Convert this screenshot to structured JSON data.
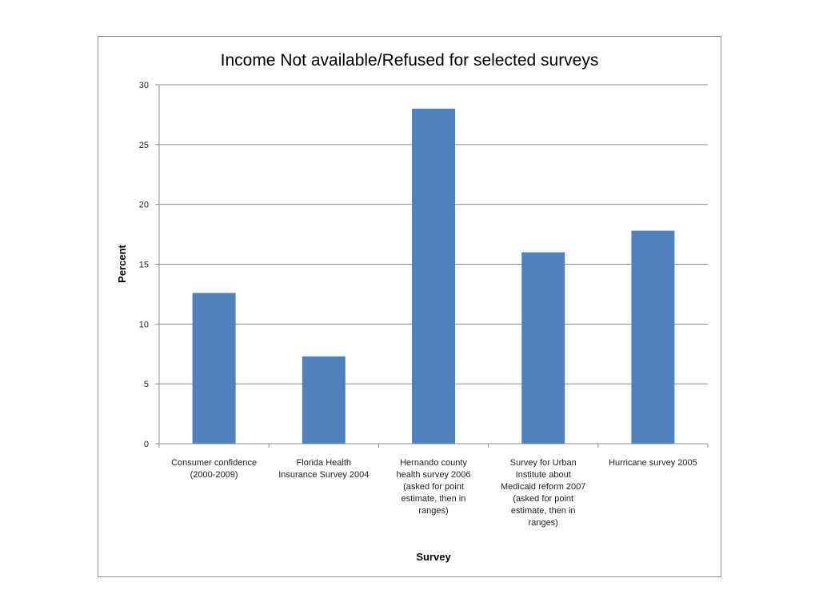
{
  "chart_data": {
    "type": "bar",
    "title": "Income Not available/Refused for selected surveys",
    "xlabel": "Survey",
    "ylabel": "Percent",
    "ylim": [
      0,
      30
    ],
    "yticks": [
      "0",
      "5",
      "10",
      "15",
      "20",
      "25",
      "30"
    ],
    "categories": [
      [
        "Consumer confidence",
        "(2000-2009)"
      ],
      [
        "Florida Health",
        "Insurance Survey 2004"
      ],
      [
        "Hernando county",
        "health survey 2006",
        "(asked for point",
        "estimate, then in",
        "ranges)"
      ],
      [
        "Survey for Urban",
        "Institute about",
        "Medicaid reform 2007",
        "(asked for point",
        "estimate, then in",
        "ranges)"
      ],
      [
        "Hurricane survey 2005"
      ]
    ],
    "values": [
      12.6,
      7.3,
      28.0,
      16.0,
      17.8
    ],
    "bar_color": "#4f81bd",
    "grid": true,
    "legend": false
  }
}
